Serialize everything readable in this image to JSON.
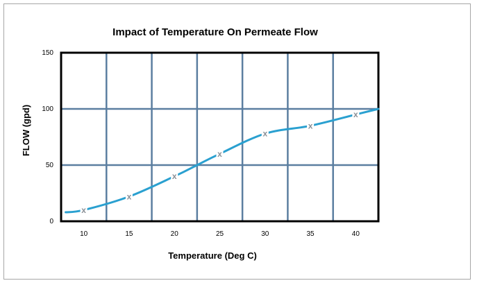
{
  "chart_data": {
    "type": "line",
    "title": "Impact of Temperature On Permeate Flow",
    "xlabel": "Temperature (Deg C)",
    "ylabel": "FLOW (gpd)",
    "xlim": [
      7.5,
      42.5
    ],
    "ylim": [
      0,
      150
    ],
    "x_ticks": [
      10,
      15,
      20,
      25,
      30,
      35,
      40
    ],
    "y_ticks": [
      0,
      50,
      100,
      150
    ],
    "marker_glyph": "x",
    "series": [
      {
        "color": "#2aa0d0",
        "marker_color": "#8a8f96",
        "line": [
          {
            "x": 8,
            "y": 8
          },
          {
            "x": 10,
            "y": 10
          },
          {
            "x": 15,
            "y": 22
          },
          {
            "x": 20,
            "y": 40
          },
          {
            "x": 22.5,
            "y": 50
          },
          {
            "x": 25,
            "y": 60
          },
          {
            "x": 30,
            "y": 78
          },
          {
            "x": 35,
            "y": 85
          },
          {
            "x": 40,
            "y": 95
          },
          {
            "x": 42.5,
            "y": 100
          }
        ],
        "markers": [
          {
            "x": 10,
            "y": 10
          },
          {
            "x": 15,
            "y": 22
          },
          {
            "x": 20,
            "y": 40
          },
          {
            "x": 25,
            "y": 60
          },
          {
            "x": 30,
            "y": 78
          },
          {
            "x": 35,
            "y": 85
          },
          {
            "x": 40,
            "y": 95
          }
        ]
      }
    ],
    "grid": true,
    "grid_color": "#5b7ea0",
    "legend": "none"
  }
}
